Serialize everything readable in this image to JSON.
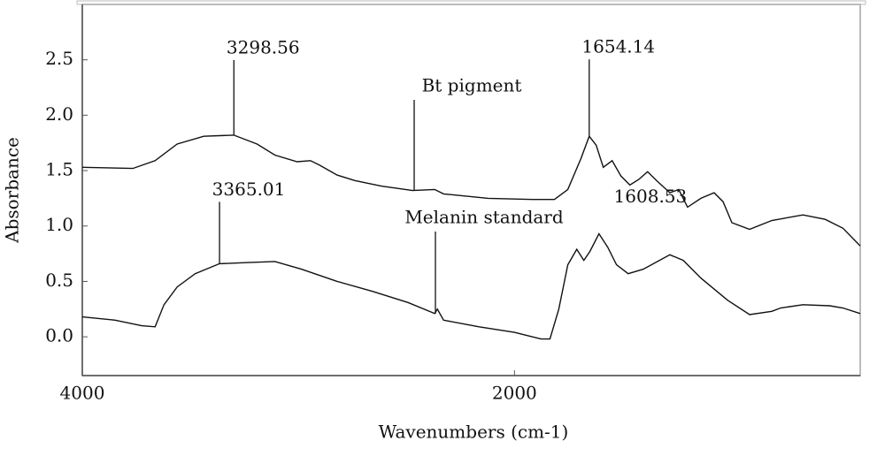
{
  "chart_data": {
    "type": "line",
    "xlabel": "Wavenumbers (cm-1)",
    "ylabel": "Absorbance",
    "xlim": [
      4000,
      400
    ],
    "ylim": [
      -0.35,
      3.0
    ],
    "xticks": [
      4000,
      2000
    ],
    "yticks": [
      {
        "value": 0,
        "label": "0.0"
      },
      0.5,
      {
        "value": 1,
        "label": "1.0"
      },
      1.5,
      {
        "value": 2,
        "label": "2.0"
      },
      2.5
    ],
    "series": [
      {
        "name": "Bt pigment",
        "color": "#111111",
        "x": [
          4000,
          3766,
          3663,
          3561,
          3438,
          3299,
          3191,
          3109,
          3006,
          2944,
          2903,
          2821,
          2739,
          2616,
          2472,
          2369,
          2328,
          2122,
          1917,
          1815,
          1753,
          1692,
          1654,
          1622,
          1589,
          1548,
          1507,
          1466,
          1425,
          1384,
          1343,
          1281,
          1240,
          1199,
          1137,
          1076,
          1035,
          994,
          912,
          809,
          665,
          562,
          480,
          400
        ],
        "values": [
          1.53,
          1.52,
          1.59,
          1.74,
          1.81,
          1.82,
          1.74,
          1.64,
          1.58,
          1.59,
          1.55,
          1.46,
          1.41,
          1.36,
          1.32,
          1.33,
          1.29,
          1.25,
          1.24,
          1.24,
          1.33,
          1.61,
          1.81,
          1.73,
          1.53,
          1.59,
          1.45,
          1.37,
          1.42,
          1.49,
          1.41,
          1.3,
          1.33,
          1.17,
          1.25,
          1.3,
          1.22,
          1.03,
          0.97,
          1.05,
          1.1,
          1.06,
          0.98,
          0.82
        ]
      },
      {
        "name": "Melanin standard",
        "color": "#111111",
        "x": [
          4000,
          3848,
          3725,
          3663,
          3622,
          3561,
          3478,
          3365,
          3232,
          3109,
          2986,
          2821,
          2657,
          2493,
          2369,
          2357,
          2328,
          2164,
          2000,
          1877,
          1836,
          1795,
          1753,
          1712,
          1679,
          1651,
          1609,
          1569,
          1528,
          1474,
          1404,
          1281,
          1219,
          1137,
          1014,
          912,
          809,
          768,
          665,
          541,
          480,
          400
        ],
        "values": [
          0.18,
          0.15,
          0.1,
          0.09,
          0.29,
          0.45,
          0.57,
          0.66,
          0.67,
          0.68,
          0.61,
          0.5,
          0.41,
          0.31,
          0.21,
          0.25,
          0.15,
          0.09,
          0.04,
          -0.02,
          -0.02,
          0.25,
          0.65,
          0.79,
          0.69,
          0.77,
          0.93,
          0.81,
          0.65,
          0.57,
          0.61,
          0.74,
          0.69,
          0.53,
          0.33,
          0.2,
          0.23,
          0.26,
          0.29,
          0.28,
          0.26,
          0.21
        ]
      }
    ],
    "peaks": [
      {
        "x": 3298.56,
        "y": 1.82
      },
      {
        "x": 1654.14,
        "y": 1.81
      },
      {
        "x": 3365.01,
        "y": 0.66
      },
      {
        "x": 1608.53,
        "y": 0.93
      }
    ]
  }
}
